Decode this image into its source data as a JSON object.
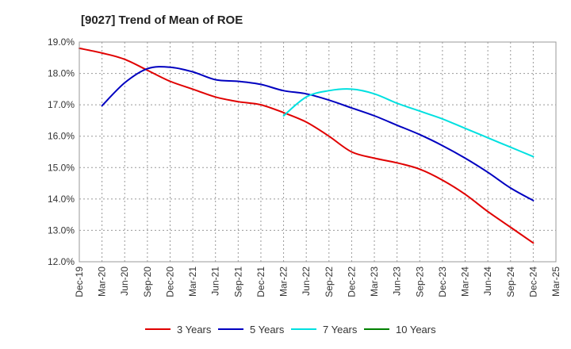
{
  "chart_data": {
    "type": "line",
    "title": "[9027]  Trend of Mean of ROE",
    "xlabel": "",
    "ylabel": "",
    "categories": [
      "Dec-19",
      "Mar-20",
      "Jun-20",
      "Sep-20",
      "Dec-20",
      "Mar-21",
      "Jun-21",
      "Sep-21",
      "Dec-21",
      "Mar-22",
      "Jun-22",
      "Sep-22",
      "Dec-22",
      "Mar-23",
      "Jun-23",
      "Sep-23",
      "Dec-23",
      "Mar-24",
      "Jun-24",
      "Sep-24",
      "Dec-24",
      "Mar-25"
    ],
    "ylim": [
      12.0,
      19.0
    ],
    "yticks": [
      "12.0%",
      "13.0%",
      "14.0%",
      "15.0%",
      "16.0%",
      "17.0%",
      "18.0%",
      "19.0%"
    ],
    "grid": true,
    "legend_position": "bottom",
    "series": [
      {
        "name": "3 Years",
        "color": "#e00000",
        "values": [
          18.8,
          18.65,
          18.45,
          18.1,
          17.75,
          17.5,
          17.25,
          17.1,
          17.0,
          16.75,
          16.45,
          16.0,
          15.5,
          15.3,
          15.15,
          14.95,
          14.6,
          14.15,
          13.6,
          13.1,
          12.6,
          null
        ]
      },
      {
        "name": "5 Years",
        "color": "#0000c0",
        "values": [
          null,
          16.97,
          17.7,
          18.15,
          18.2,
          18.05,
          17.8,
          17.75,
          17.65,
          17.45,
          17.35,
          17.15,
          16.9,
          16.65,
          16.35,
          16.05,
          15.7,
          15.3,
          14.85,
          14.35,
          13.95,
          null
        ]
      },
      {
        "name": "7 Years",
        "color": "#00e0e0",
        "values": [
          null,
          null,
          null,
          null,
          null,
          null,
          null,
          null,
          null,
          16.65,
          17.25,
          17.45,
          17.5,
          17.35,
          17.05,
          16.8,
          16.55,
          16.25,
          15.95,
          15.65,
          15.35,
          null
        ]
      },
      {
        "name": "10 Years",
        "color": "#008000",
        "values": [
          null,
          null,
          null,
          null,
          null,
          null,
          null,
          null,
          null,
          null,
          null,
          null,
          null,
          null,
          null,
          null,
          null,
          null,
          null,
          null,
          null,
          null
        ]
      }
    ]
  }
}
